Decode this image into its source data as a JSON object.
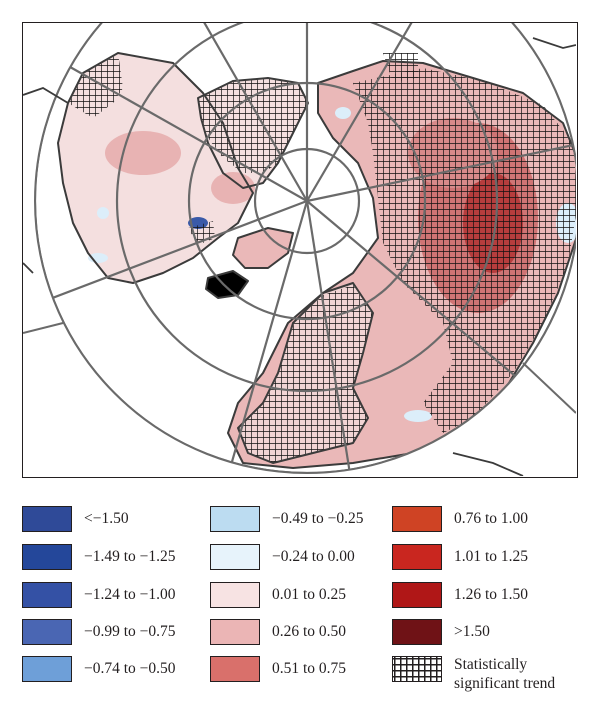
{
  "map": {
    "colors": {
      "land_light": "#f4dfdf",
      "land_mid": "#e9b4b4",
      "land_dark": "#cc6a6a",
      "land_darkest": "#b33a3a",
      "water": "#ffffff",
      "blue_light": "#dceefa",
      "blue_dark": "#3a5aa8",
      "coast": "#3b3b3b",
      "grid": "#6a6a6a",
      "hatch": "#111111"
    }
  },
  "legend": {
    "items": [
      {
        "label": "<−1.50",
        "color": "#2f4a98"
      },
      {
        "label": "−1.49 to −1.25",
        "color": "#24479a"
      },
      {
        "label": "−1.24 to −1.00",
        "color": "#3451a5"
      },
      {
        "label": "−0.99 to −0.75",
        "color": "#4a66b3"
      },
      {
        "label": "−0.74 to −0.50",
        "color": "#6e9fd8"
      },
      {
        "label": "−0.49 to −0.25",
        "color": "#bcdcf1"
      },
      {
        "label": "−0.24 to 0.00",
        "color": "#e7f3fb"
      },
      {
        "label": "0.01 to 0.25",
        "color": "#f7e3e3"
      },
      {
        "label": "0.26 to 0.50",
        "color": "#ebb5b5"
      },
      {
        "label": "0.51 to 0.75",
        "color": "#d9706b"
      },
      {
        "label": "0.76 to 1.00",
        "color": "#cf4324"
      },
      {
        "label": "1.01 to 1.25",
        "color": "#c9261f"
      },
      {
        "label": "1.26 to 1.50",
        "color": "#b01717"
      },
      {
        "label": ">1.50",
        "color": "#6f1216"
      }
    ],
    "hatch_label_line1": "Statistically",
    "hatch_label_line2": "significant trend"
  }
}
